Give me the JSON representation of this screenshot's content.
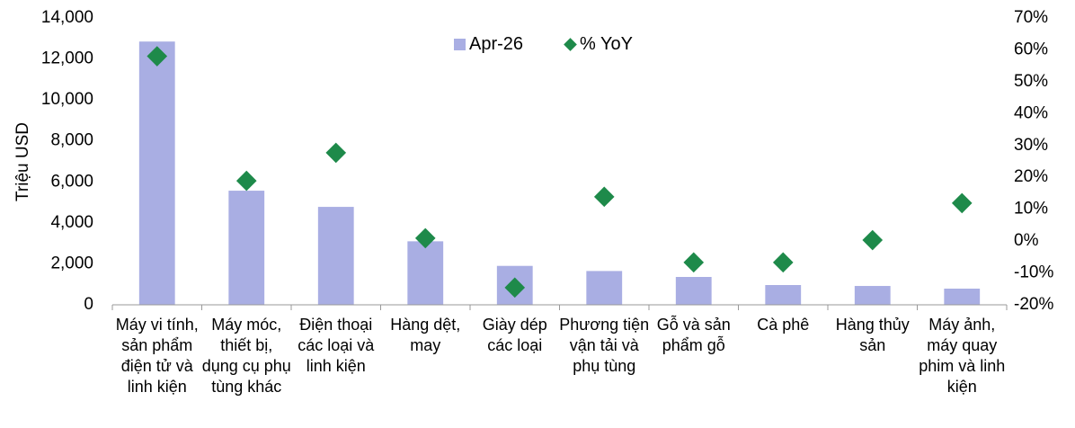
{
  "chart_data": {
    "type": "bar_scatter",
    "y_label": "Triệu USD",
    "categories": [
      "Máy vi tính, sản phẩm điện tử và linh kiện",
      "Máy móc, thiết bị, dụng cụ phụ tùng khác",
      "Điện thoại các loại và linh kiện",
      "Hàng dệt, may",
      "Giày dép các loại",
      "Phương tiện vận tải và phụ tùng",
      "Gỗ và sản phẩm gỗ",
      "Cà phê",
      "Hàng thủy sản",
      "Máy ảnh, máy quay phim và linh kiện"
    ],
    "series": [
      {
        "name": "Apr-26",
        "color": "#a9aee3",
        "kind": "bar",
        "values": [
          12850,
          5570,
          4780,
          3100,
          1900,
          1650,
          1360,
          965,
          920,
          790
        ]
      },
      {
        "name": "% YoY",
        "color": "#1e8a4a",
        "kind": "scatter",
        "axis": "y2",
        "values": [
          58,
          18.9,
          27.7,
          0.9,
          -14.6,
          13.9,
          -6.7,
          -6.7,
          0.3,
          11.9
        ]
      }
    ],
    "ylim": [
      0,
      14000
    ],
    "yticks": [
      0,
      {
        "value": 2000,
        "label": "2,000"
      },
      {
        "value": 4000,
        "label": "4,000"
      },
      {
        "value": 6000,
        "label": "6,000"
      },
      {
        "value": 8000,
        "label": "8,000"
      },
      {
        "value": 10000,
        "label": "10,000"
      },
      {
        "value": 12000,
        "label": "12,000"
      },
      {
        "value": 14000,
        "label": "14,000"
      }
    ],
    "y2lim": [
      -20,
      70
    ],
    "y2ticks": [
      {
        "value": -20,
        "label": "-20%"
      },
      {
        "value": -10,
        "label": "-10%"
      },
      {
        "value": 0,
        "label": "0%"
      },
      {
        "value": 10,
        "label": "10%"
      },
      {
        "value": 20,
        "label": "20%"
      },
      {
        "value": 30,
        "label": "30%"
      },
      {
        "value": 40,
        "label": "40%"
      },
      {
        "value": 50,
        "label": "50%"
      },
      {
        "value": 60,
        "label": "60%"
      },
      {
        "value": 70,
        "label": "70%"
      }
    ],
    "legend": "top"
  }
}
